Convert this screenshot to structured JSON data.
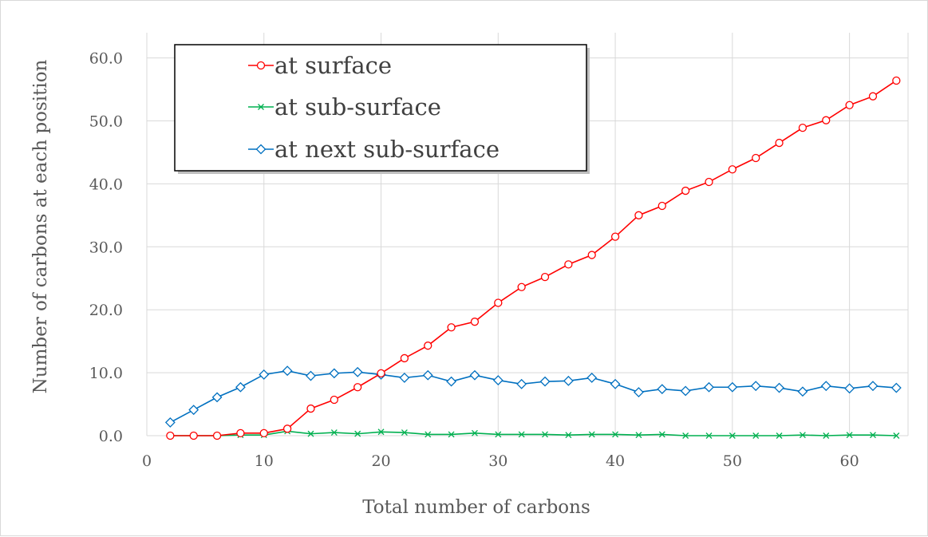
{
  "chart_data": {
    "type": "line",
    "xlabel": "Total number of carbons",
    "ylabel": "Number of carbons at each position",
    "xlim": [
      0,
      65
    ],
    "ylim": [
      0,
      64
    ],
    "x_ticks": [
      0,
      10,
      20,
      30,
      40,
      50,
      60
    ],
    "y_ticks": [
      0,
      10,
      20,
      30,
      40,
      50,
      60
    ],
    "y_tick_labels": [
      "0.0",
      "10.0",
      "20.0",
      "30.0",
      "40.0",
      "50.0",
      "60.0"
    ],
    "grid": true,
    "legend_position": "top-left",
    "x": [
      2,
      4,
      6,
      8,
      10,
      12,
      14,
      16,
      18,
      20,
      22,
      24,
      26,
      28,
      30,
      32,
      34,
      36,
      38,
      40,
      42,
      44,
      46,
      48,
      50,
      52,
      54,
      56,
      58,
      60,
      62,
      64
    ],
    "series": [
      {
        "name": "at surface",
        "color": "#ff0000",
        "marker": "circle",
        "values": [
          0.0,
          0.0,
          0.0,
          0.4,
          0.4,
          1.1,
          4.3,
          5.7,
          7.7,
          9.9,
          12.3,
          14.3,
          17.2,
          18.1,
          21.1,
          23.6,
          25.2,
          27.2,
          28.7,
          31.6,
          35.0,
          36.5,
          38.9,
          40.3,
          42.3,
          44.1,
          46.5,
          48.9,
          50.1,
          52.5,
          53.9,
          56.4
        ]
      },
      {
        "name": "at sub-surface",
        "color": "#00b050",
        "marker": "x",
        "values": [
          0.0,
          0.0,
          0.0,
          0.1,
          0.1,
          0.7,
          0.3,
          0.5,
          0.3,
          0.6,
          0.5,
          0.2,
          0.2,
          0.4,
          0.2,
          0.2,
          0.2,
          0.1,
          0.2,
          0.2,
          0.1,
          0.2,
          0.0,
          0.0,
          0.0,
          0.0,
          0.0,
          0.1,
          0.0,
          0.1,
          0.1,
          0.0
        ]
      },
      {
        "name": "at next sub-surface",
        "color": "#0070c0",
        "marker": "diamond",
        "values": [
          2.1,
          4.1,
          6.1,
          7.7,
          9.7,
          10.3,
          9.5,
          9.9,
          10.1,
          9.7,
          9.2,
          9.6,
          8.6,
          9.6,
          8.8,
          8.2,
          8.6,
          8.7,
          9.2,
          8.2,
          6.9,
          7.4,
          7.1,
          7.7,
          7.7,
          7.9,
          7.6,
          7.0,
          7.9,
          7.5,
          7.9,
          7.6
        ]
      }
    ]
  }
}
